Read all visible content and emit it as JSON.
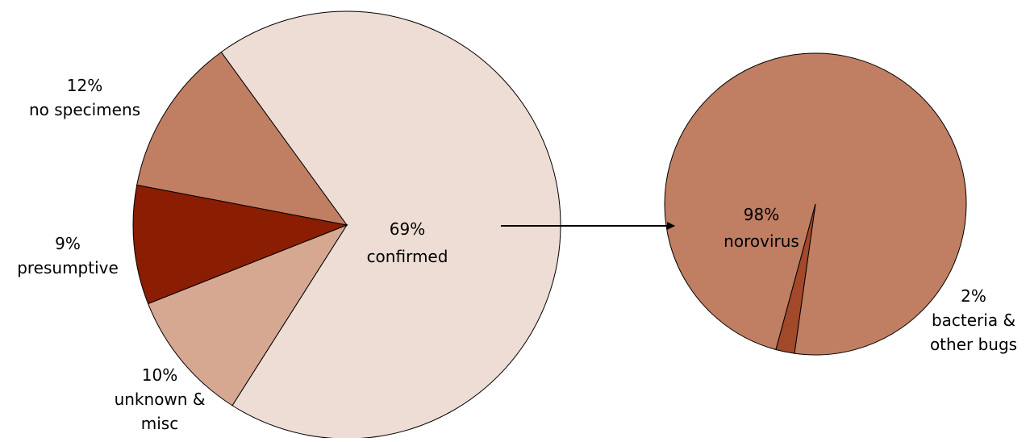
{
  "chart_data": [
    {
      "type": "pie",
      "slices": [
        {
          "key": "confirmed",
          "value": 69,
          "pct_label": "69%",
          "label_lines": [
            "confirmed"
          ],
          "color": "#EEDDD4"
        },
        {
          "key": "unknown_misc",
          "value": 10,
          "pct_label": "10%",
          "label_lines": [
            "unknown &",
            "misc"
          ],
          "color": "#D6A892"
        },
        {
          "key": "presumptive",
          "value": 9,
          "pct_label": "9%",
          "label_lines": [
            "presumptive"
          ],
          "color": "#8A1D02"
        },
        {
          "key": "no_specimens",
          "value": 12,
          "pct_label": "12%",
          "label_lines": [
            "no specimens"
          ],
          "color": "#C07E63"
        }
      ]
    },
    {
      "type": "pie",
      "slices": [
        {
          "key": "norovirus",
          "value": 98,
          "pct_label": "98%",
          "label_lines": [
            "norovirus"
          ],
          "color": "#C07E63"
        },
        {
          "key": "bacteria_other",
          "value": 2,
          "pct_label": "2%",
          "label_lines": [
            "bacteria &",
            "other bugs"
          ],
          "color": "#A2492A"
        }
      ]
    }
  ],
  "connector": {
    "from": "confirmed",
    "to": "norovirus",
    "color": "#000000"
  }
}
